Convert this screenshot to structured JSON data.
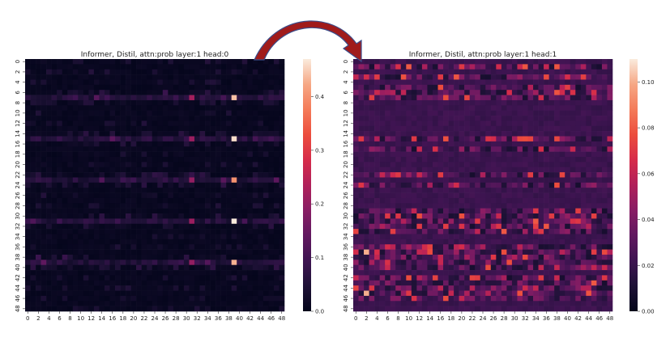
{
  "chart_data": [
    {
      "type": "heatmap",
      "title": "Informer, Distil, attn:prob layer:1 head:0",
      "xlabel": "",
      "ylabel": "",
      "x_ticks": [
        "0",
        "2",
        "4",
        "6",
        "8",
        "10",
        "12",
        "14",
        "16",
        "18",
        "20",
        "22",
        "24",
        "26",
        "28",
        "30",
        "32",
        "34",
        "36",
        "38",
        "40",
        "42",
        "44",
        "46",
        "48"
      ],
      "y_ticks": [
        "0",
        "2",
        "4",
        "6",
        "8",
        "10",
        "12",
        "14",
        "16",
        "18",
        "20",
        "22",
        "24",
        "26",
        "28",
        "30",
        "32",
        "34",
        "36",
        "38",
        "40",
        "42",
        "44",
        "46",
        "48"
      ],
      "rows": 49,
      "cols": 49,
      "colorbar_ticks": [
        "0.0",
        "0.1",
        "0.2",
        "0.3",
        "0.4"
      ],
      "vmin": 0.0,
      "vmax": 0.47,
      "colormap": "rocket",
      "row_pattern": {
        "hot_rows": [
          7,
          15,
          23,
          31,
          39
        ],
        "hot_cols_peak": [
          31,
          39
        ],
        "peak_values": {
          "7,39": 0.44,
          "15,39": 0.46,
          "23,39": 0.4,
          "31,39": 0.47,
          "39,39": 0.43,
          "7,31": 0.22,
          "15,31": 0.21,
          "23,31": 0.2,
          "31,31": 0.21,
          "39,31": 0.2
        },
        "background_value": 0.01
      }
    },
    {
      "type": "heatmap",
      "title": "Informer, Distil, attn:prob layer:1 head:1",
      "xlabel": "",
      "ylabel": "",
      "x_ticks": [
        "0",
        "2",
        "4",
        "6",
        "8",
        "10",
        "12",
        "14",
        "16",
        "18",
        "20",
        "22",
        "24",
        "26",
        "28",
        "30",
        "32",
        "34",
        "36",
        "38",
        "40",
        "42",
        "44",
        "46",
        "48"
      ],
      "y_ticks": [
        "0",
        "2",
        "4",
        "6",
        "8",
        "10",
        "12",
        "14",
        "16",
        "18",
        "20",
        "22",
        "24",
        "26",
        "28",
        "30",
        "32",
        "34",
        "36",
        "38",
        "40",
        "42",
        "44",
        "46",
        "48"
      ],
      "rows": 49,
      "cols": 49,
      "colorbar_ticks": [
        "0.00",
        "0.02",
        "0.04",
        "0.06",
        "0.08",
        "0.10"
      ],
      "vmin": 0.0,
      "vmax": 0.11,
      "colormap": "rocket",
      "row_pattern": {
        "active_rows": [
          1,
          3,
          5,
          6,
          7,
          15,
          17,
          22,
          24,
          29,
          30,
          31,
          32,
          33,
          36,
          37,
          38,
          39,
          40,
          42,
          43,
          44,
          45,
          46
        ],
        "peak_values": {
          "37,2": 0.1,
          "45,2": 0.1,
          "1,10": 0.08,
          "22,8": 0.07,
          "31,23": 0.07
        },
        "background_value": 0.02
      }
    }
  ],
  "arrow": {
    "color": "#a01b1b",
    "from": "left-heatmap-top-right",
    "to": "right-heatmap-top-left"
  }
}
